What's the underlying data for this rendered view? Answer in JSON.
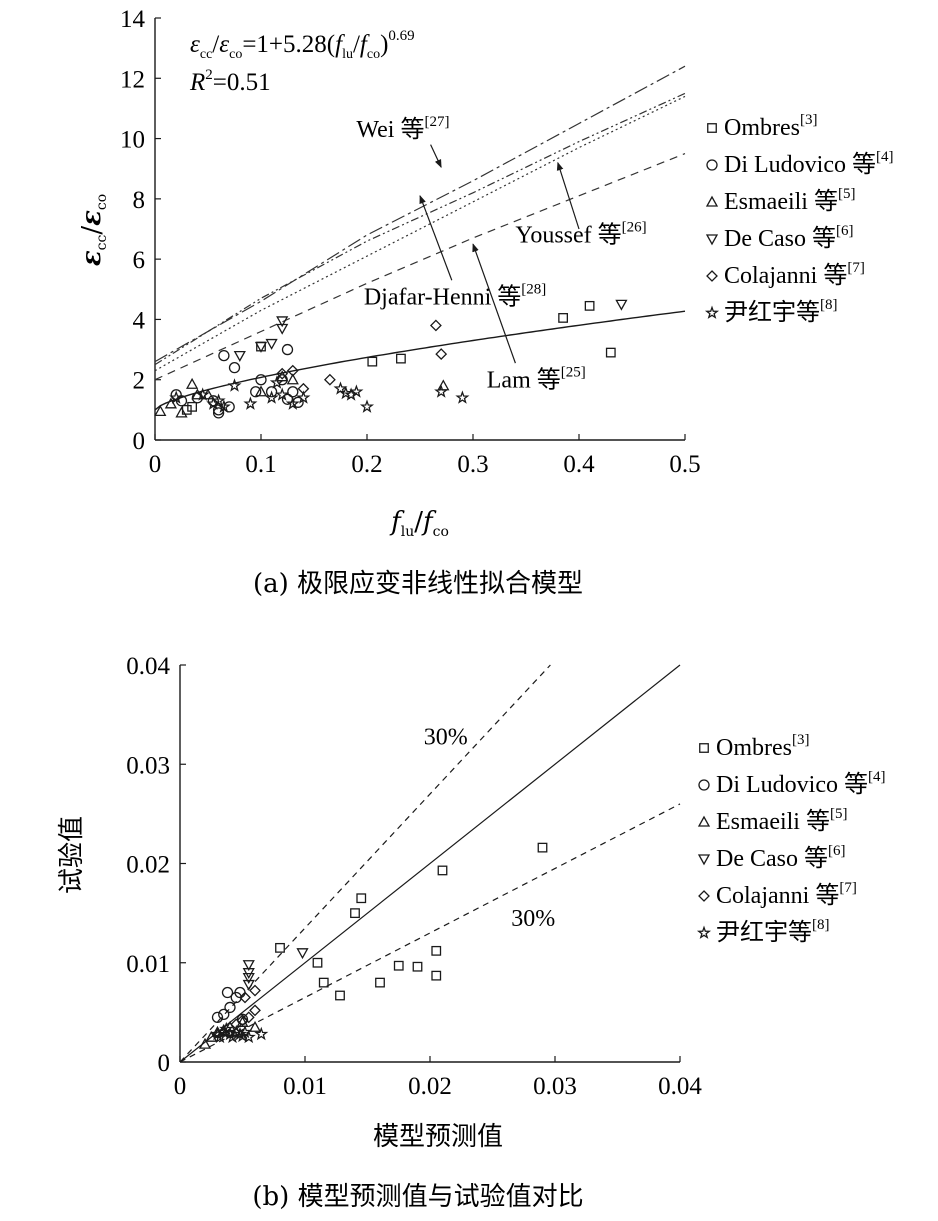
{
  "chart_data": [
    {
      "type": "scatter",
      "caption": "(a) 极限应变非线性拟合模型",
      "xlabel": {
        "main": "f",
        "sub1": "lu",
        "slash": "/",
        "main2": "f",
        "sub2": "co"
      },
      "ylabel": {
        "main": "ε",
        "sub1": "cc",
        "slash": "/",
        "main2": "ε",
        "sub2": "co"
      },
      "xlim": [
        0,
        0.5
      ],
      "ylim": [
        0,
        14
      ],
      "x_ticks": [
        "0",
        "0.1",
        "0.2",
        "0.3",
        "0.4",
        "0.5"
      ],
      "y_ticks": [
        "0",
        "2",
        "4",
        "6",
        "8",
        "10",
        "12",
        "14"
      ],
      "equation": {
        "eps1": "ε",
        "sub1": "cc",
        "slash": "/",
        "eps2": "ε",
        "sub2": "co",
        "mid": "=1+5.28(",
        "f1": "f",
        "sub3": "lu",
        "slash2": "/",
        "f2": "f",
        "sub4": "co",
        "close": ")",
        "exp": "0.69"
      },
      "r2": {
        "r": "R",
        "sup": "2",
        "rest": "=0.51"
      },
      "fit_curve": {
        "a": 1,
        "b": 5.28,
        "c": 0.69
      },
      "model_lines": [
        {
          "name": "Wei 等",
          "ref": "[27]",
          "dash": "14 4 3 4",
          "points": [
            [
              0,
              2.6
            ],
            [
              0.1,
              4.6
            ],
            [
              0.2,
              6.8
            ],
            [
              0.3,
              8.6
            ],
            [
              0.4,
              10.5
            ],
            [
              0.5,
              12.4
            ]
          ]
        },
        {
          "name": "Djafar-Henni 等",
          "ref": "[28]",
          "dash": "2 3",
          "points": [
            [
              0,
              2.3
            ],
            [
              0.1,
              4.3
            ],
            [
              0.2,
              6.1
            ],
            [
              0.3,
              7.9
            ],
            [
              0.4,
              9.7
            ],
            [
              0.5,
              11.4
            ]
          ]
        },
        {
          "name": "Youssef 等",
          "ref": "[26]",
          "dash": "8 3 2 3 2 3",
          "points": [
            [
              0,
              2.5
            ],
            [
              0.1,
              4.7
            ],
            [
              0.2,
              6.6
            ],
            [
              0.3,
              8.2
            ],
            [
              0.4,
              9.9
            ],
            [
              0.5,
              11.5
            ]
          ]
        },
        {
          "name": "Lam 等",
          "ref": "[25]",
          "dash": "8 6",
          "points": [
            [
              0,
              2.0
            ],
            [
              0.1,
              3.6
            ],
            [
              0.2,
              5.2
            ],
            [
              0.3,
              6.7
            ],
            [
              0.4,
              8.1
            ],
            [
              0.5,
              9.5
            ]
          ]
        }
      ],
      "annotations": [
        {
          "text": "Wei 等",
          "ref": "[27]",
          "tx": 0.19,
          "ty": 10.05,
          "ax0": 0.26,
          "ay0": 9.8,
          "ax1": 0.27,
          "ay1": 9.05
        },
        {
          "text": "Youssef 等",
          "ref": "[26]",
          "tx": 0.34,
          "ty": 6.55,
          "ax0": 0.4,
          "ay0": 7.0,
          "ax1": 0.38,
          "ay1": 9.2
        },
        {
          "text": "Djafar-Henni 等",
          "ref": "[28]",
          "tx": 0.197,
          "ty": 4.5,
          "ax0": 0.28,
          "ay0": 5.3,
          "ax1": 0.25,
          "ay1": 8.1
        },
        {
          "text": "Lam 等",
          "ref": "[25]",
          "tx": 0.313,
          "ty": 1.75,
          "ax0": 0.34,
          "ay0": 2.55,
          "ax1": 0.3,
          "ay1": 6.5
        }
      ],
      "series": [
        {
          "name": "Ombres",
          "ref": "[3]",
          "marker": "square",
          "points": [
            [
              0.03,
              1.0
            ],
            [
              0.035,
              1.1
            ],
            [
              0.1,
              3.1
            ],
            [
              0.205,
              2.6
            ],
            [
              0.232,
              2.7
            ],
            [
              0.385,
              4.05
            ],
            [
              0.41,
              4.45
            ],
            [
              0.43,
              2.9
            ]
          ]
        },
        {
          "name": "Di Ludovico 等",
          "ref": "[4]",
          "marker": "circle",
          "points": [
            [
              0.02,
              1.5
            ],
            [
              0.025,
              1.3
            ],
            [
              0.04,
              1.4
            ],
            [
              0.055,
              1.3
            ],
            [
              0.06,
              1.0
            ],
            [
              0.06,
              0.9
            ],
            [
              0.065,
              2.8
            ],
            [
              0.07,
              1.1
            ],
            [
              0.075,
              2.4
            ],
            [
              0.095,
              1.6
            ],
            [
              0.1,
              2.0
            ],
            [
              0.11,
              1.6
            ],
            [
              0.12,
              2.0
            ],
            [
              0.125,
              3.0
            ],
            [
              0.125,
              1.35
            ],
            [
              0.13,
              1.6
            ],
            [
              0.135,
              1.25
            ]
          ]
        },
        {
          "name": "Esmaeili 等",
          "ref": "[5]",
          "marker": "triangle-up",
          "points": [
            [
              0.005,
              0.95
            ],
            [
              0.015,
              1.2
            ],
            [
              0.025,
              0.9
            ],
            [
              0.035,
              1.85
            ],
            [
              0.04,
              1.5
            ],
            [
              0.05,
              1.5
            ],
            [
              0.1,
              1.6
            ],
            [
              0.12,
              2.1
            ],
            [
              0.13,
              2.0
            ],
            [
              0.272,
              1.8
            ]
          ]
        },
        {
          "name": "De Caso 等",
          "ref": "[6]",
          "marker": "triangle-down",
          "points": [
            [
              0.08,
              2.8
            ],
            [
              0.1,
              3.1
            ],
            [
              0.11,
              3.2
            ],
            [
              0.12,
              3.7
            ],
            [
              0.12,
              3.95
            ],
            [
              0.44,
              4.5
            ]
          ]
        },
        {
          "name": "Colajanni 等",
          "ref": "[7]",
          "marker": "diamond",
          "points": [
            [
              0.12,
              2.2
            ],
            [
              0.13,
              2.3
            ],
            [
              0.14,
              1.7
            ],
            [
              0.165,
              2.0
            ],
            [
              0.265,
              3.8
            ],
            [
              0.27,
              2.85
            ]
          ]
        },
        {
          "name": "尹红宇等",
          "ref": "[8]",
          "marker": "star",
          "points": [
            [
              0.02,
              1.4
            ],
            [
              0.045,
              1.5
            ],
            [
              0.055,
              1.2
            ],
            [
              0.06,
              1.3
            ],
            [
              0.065,
              1.1
            ],
            [
              0.075,
              1.8
            ],
            [
              0.09,
              1.2
            ],
            [
              0.11,
              1.4
            ],
            [
              0.115,
              1.9
            ],
            [
              0.12,
              1.5
            ],
            [
              0.13,
              1.2
            ],
            [
              0.14,
              1.4
            ],
            [
              0.175,
              1.7
            ],
            [
              0.18,
              1.55
            ],
            [
              0.185,
              1.5
            ],
            [
              0.19,
              1.6
            ],
            [
              0.2,
              1.1
            ],
            [
              0.27,
              1.6
            ],
            [
              0.29,
              1.4
            ]
          ]
        }
      ]
    },
    {
      "type": "scatter",
      "caption": "(b) 模型预测值与试验值对比",
      "xlabel": "模型预测值",
      "ylabel": "试验值",
      "xlim": [
        0,
        0.04
      ],
      "ylim": [
        0,
        0.04
      ],
      "x_ticks": [
        "0",
        "0.01",
        "0.02",
        "0.03",
        "0.04"
      ],
      "y_ticks": [
        "0",
        "0.01",
        "0.02",
        "0.03",
        "0.04"
      ],
      "reference_lines": [
        {
          "kind": "equality",
          "slope": 1.0
        },
        {
          "kind": "upper_30",
          "slope": 1.35,
          "label": "30%",
          "lx": 0.0195,
          "ly": 0.032
        },
        {
          "kind": "lower_30",
          "slope": 0.65,
          "label": "30%",
          "lx": 0.0265,
          "ly": 0.0137
        }
      ],
      "series": [
        {
          "name": "Ombres",
          "ref": "[3]",
          "marker": "square",
          "points": [
            [
              0.008,
              0.0115
            ],
            [
              0.011,
              0.01
            ],
            [
              0.0115,
              0.008
            ],
            [
              0.0128,
              0.0067
            ],
            [
              0.014,
              0.015
            ],
            [
              0.0145,
              0.0165
            ],
            [
              0.016,
              0.008
            ],
            [
              0.0175,
              0.0097
            ],
            [
              0.019,
              0.0096
            ],
            [
              0.0205,
              0.0087
            ],
            [
              0.0205,
              0.0112
            ],
            [
              0.021,
              0.0193
            ],
            [
              0.029,
              0.0216
            ]
          ]
        },
        {
          "name": "Di Ludovico 等",
          "ref": "[4]",
          "marker": "circle",
          "points": [
            [
              0.003,
              0.0045
            ],
            [
              0.0035,
              0.0048
            ],
            [
              0.0038,
              0.007
            ],
            [
              0.004,
              0.0055
            ],
            [
              0.0045,
              0.0065
            ],
            [
              0.0048,
              0.007
            ],
            [
              0.005,
              0.0043
            ]
          ]
        },
        {
          "name": "Esmaeili 等",
          "ref": "[5]",
          "marker": "triangle-up",
          "points": [
            [
              0.002,
              0.0018
            ],
            [
              0.0025,
              0.0025
            ],
            [
              0.003,
              0.003
            ],
            [
              0.0035,
              0.0032
            ],
            [
              0.004,
              0.0035
            ],
            [
              0.0045,
              0.003
            ],
            [
              0.005,
              0.004
            ],
            [
              0.006,
              0.0035
            ]
          ]
        },
        {
          "name": "De Caso 等",
          "ref": "[6]",
          "marker": "triangle-down",
          "points": [
            [
              0.0055,
              0.0098
            ],
            [
              0.0055,
              0.009
            ],
            [
              0.0055,
              0.0085
            ],
            [
              0.0055,
              0.0078
            ],
            [
              0.0098,
              0.011
            ]
          ]
        },
        {
          "name": "Colajanni 等",
          "ref": "[7]",
          "marker": "diamond",
          "points": [
            [
              0.0045,
              0.0038
            ],
            [
              0.005,
              0.0042
            ],
            [
              0.0055,
              0.0045
            ],
            [
              0.006,
              0.0052
            ],
            [
              0.006,
              0.0072
            ],
            [
              0.0052,
              0.0065
            ]
          ]
        },
        {
          "name": "尹红宇等",
          "ref": "[8]",
          "marker": "star",
          "points": [
            [
              0.003,
              0.0028
            ],
            [
              0.0032,
              0.0025
            ],
            [
              0.0035,
              0.003
            ],
            [
              0.0037,
              0.0033
            ],
            [
              0.004,
              0.0028
            ],
            [
              0.0042,
              0.0025
            ],
            [
              0.0045,
              0.003
            ],
            [
              0.0048,
              0.0028
            ],
            [
              0.005,
              0.0026
            ],
            [
              0.0052,
              0.003
            ],
            [
              0.0055,
              0.0025
            ],
            [
              0.0065,
              0.0028
            ]
          ]
        }
      ]
    }
  ]
}
